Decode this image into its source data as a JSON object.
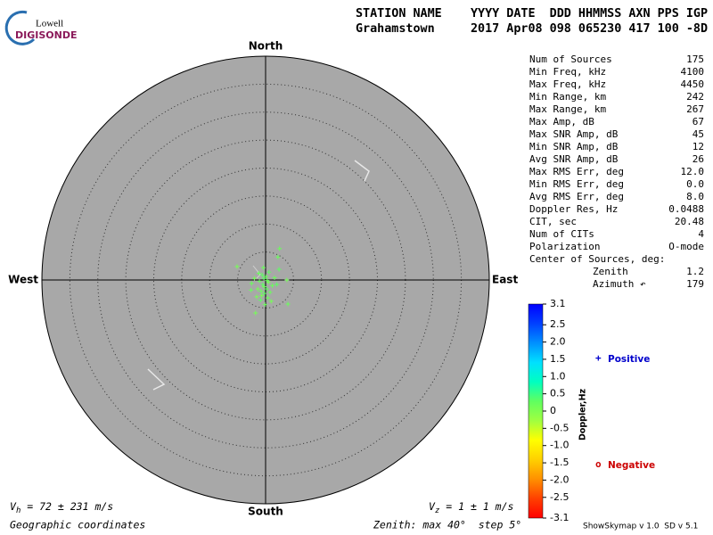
{
  "chart_data": {
    "type": "skymap",
    "logo": {
      "top": "Lowell",
      "bottom": "DIGISONDE"
    },
    "header": {
      "labels": "STATION NAME    YYYY DATE  DDD HHMMSS AXN PPS IGP",
      "values": "Grahamstown     2017 Apr08 098 065230 417 100 -8D"
    },
    "directions": {
      "north": "North",
      "south": "South",
      "east": "East",
      "west": "West"
    },
    "xlim": [
      -40,
      40
    ],
    "ylim": [
      -40,
      40
    ],
    "rticks": [
      5,
      10,
      15,
      20,
      25,
      30,
      35,
      40
    ],
    "background": "#a8a8a8",
    "series": [
      {
        "name": "Positive",
        "color": "#0000cc",
        "marker": "+",
        "x": [
          2.5,
          -5.1,
          2.2,
          2.4,
          3.8,
          4.0,
          -1.8,
          -2.5,
          -0.5,
          -0.3,
          0.2,
          -0.8,
          0.5,
          -1.1,
          -0.2,
          0.8,
          -1.4,
          0.1,
          -0.6,
          1.2,
          -1.6,
          0.4,
          -0.9,
          1.6,
          -2.0,
          -0.4,
          0.6,
          -1.2,
          1.0,
          -0.1,
          2.0,
          -2.6,
          -0.7,
          0.3,
          -0.3
        ],
        "y": [
          5.6,
          2.4,
          4.1,
          1.9,
          0.0,
          -4.3,
          -5.9,
          -0.6,
          -0.8,
          -1.2,
          -1.6,
          -2.0,
          -0.4,
          -0.2,
          -2.4,
          -2.2,
          -1.6,
          0.6,
          0.9,
          -1.0,
          -3.0,
          -3.2,
          -3.6,
          0.4,
          0.3,
          2.2,
          1.4,
          1.2,
          -3.8,
          -4.4,
          -0.8,
          -1.8,
          -2.8,
          -0.1,
          0.3
        ],
        "doppler": [
          0.2,
          0.1,
          0.2,
          0.3,
          0.1,
          0.2,
          0.1,
          0.2,
          0.3,
          0.2,
          0.3,
          0.2,
          0.1,
          0.2,
          0.3,
          0.2,
          0.1,
          0.2,
          0.3,
          0.2,
          0.1,
          0.2,
          0.3,
          0.2,
          0.1,
          0.2,
          0.3,
          0.2,
          0.1,
          0.2,
          0.3,
          0.2,
          0.1,
          0.2,
          0.3
        ]
      },
      {
        "name": "Negative",
        "color": "#cc0000",
        "marker": "o",
        "x": [],
        "y": [],
        "doppler": []
      }
    ],
    "stats": [
      [
        "Num of Sources",
        "175"
      ],
      [
        "Min Freq, kHz",
        "4100"
      ],
      [
        "Max Freq, kHz",
        "4450"
      ],
      [
        "Min Range, km",
        "242"
      ],
      [
        "Max Range, km",
        "267"
      ],
      [
        "Max Amp, dB",
        "67"
      ],
      [
        "Max SNR Amp, dB",
        "45"
      ],
      [
        "Min SNR Amp, dB",
        "12"
      ],
      [
        "Avg SNR Amp, dB",
        "26"
      ],
      [
        "Max RMS Err, deg",
        "12.0"
      ],
      [
        "Min RMS Err, deg",
        "0.0"
      ],
      [
        "Avg RMS Err, deg",
        "8.0"
      ],
      [
        "Doppler Res, Hz",
        "0.0488"
      ],
      [
        "CIT, sec",
        "20.48"
      ],
      [
        "Num of CITs",
        "4"
      ],
      [
        "Polarization",
        "O-mode"
      ],
      [
        "Center of Sources, deg:",
        ""
      ],
      [
        "Zenith",
        "1.2"
      ],
      [
        "Azimuth ↶",
        "179"
      ]
    ],
    "colorbar": {
      "label": "Doppler,Hz",
      "clim": [
        -3.1,
        3.1
      ],
      "colors": [
        "#ff0000",
        "#ff4000",
        "#ff9000",
        "#ffd000",
        "#ffff00",
        "#a0ff40",
        "#60ff60",
        "#00ffc0",
        "#00e0ff",
        "#0090ff",
        "#0040ff",
        "#0000ff"
      ],
      "ticks": [
        3.1,
        2.5,
        {
          "value": 2.0,
          "label": "2.0"
        },
        1.5,
        {
          "value": 1.0,
          "label": "1.0"
        },
        0.5,
        0,
        -0.5,
        {
          "value": -1.0,
          "label": "-1.0"
        },
        -1.5,
        {
          "value": -2.0,
          "label": "-2.0"
        },
        -2.5,
        -3.1
      ]
    },
    "vh": {
      "symbol": "V",
      "sub": "h",
      "text": " = 72 ± 231 m/s"
    },
    "vz": {
      "symbol": "V",
      "sub": "z",
      "text": " = 1 ± 1 m/s"
    },
    "coordinates": "Geographic coordinates",
    "zenith_note": "Zenith: max 40°  step 5°",
    "version": "ShowSkymap v 1.0  SD v 5.1"
  }
}
